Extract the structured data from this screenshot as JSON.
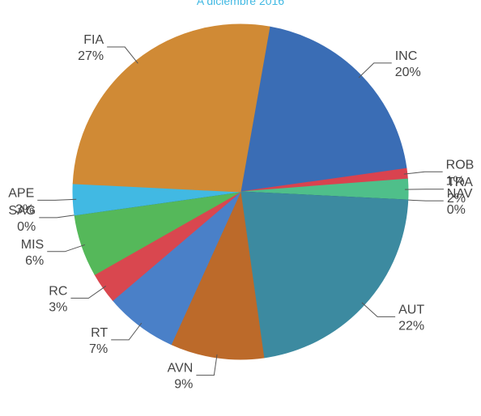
{
  "chart_data": {
    "type": "pie",
    "title": "A diciembre 2016",
    "categories": [
      "INC",
      "ROB",
      "TRA",
      "NAV",
      "AUT",
      "AVN",
      "RT",
      "RC",
      "MIS",
      "SAG",
      "APE",
      "FIA"
    ],
    "values": [
      20,
      1,
      2,
      0,
      22,
      9,
      7,
      3,
      6,
      0,
      3,
      27
    ],
    "value_labels": [
      "20%",
      "1%",
      "2%",
      "0%",
      "22%",
      "9%",
      "7%",
      "3%",
      "6%",
      "0%",
      "3%",
      "27%"
    ],
    "colors": [
      "#3a6db5",
      "#d9434f",
      "#4fbf8a",
      "#2b3a45",
      "#3c8aa0",
      "#bc6a2a",
      "#4a80c8",
      "#d9474f",
      "#55b85a",
      "#2b3a45",
      "#41b9e3",
      "#d08a35"
    ]
  }
}
